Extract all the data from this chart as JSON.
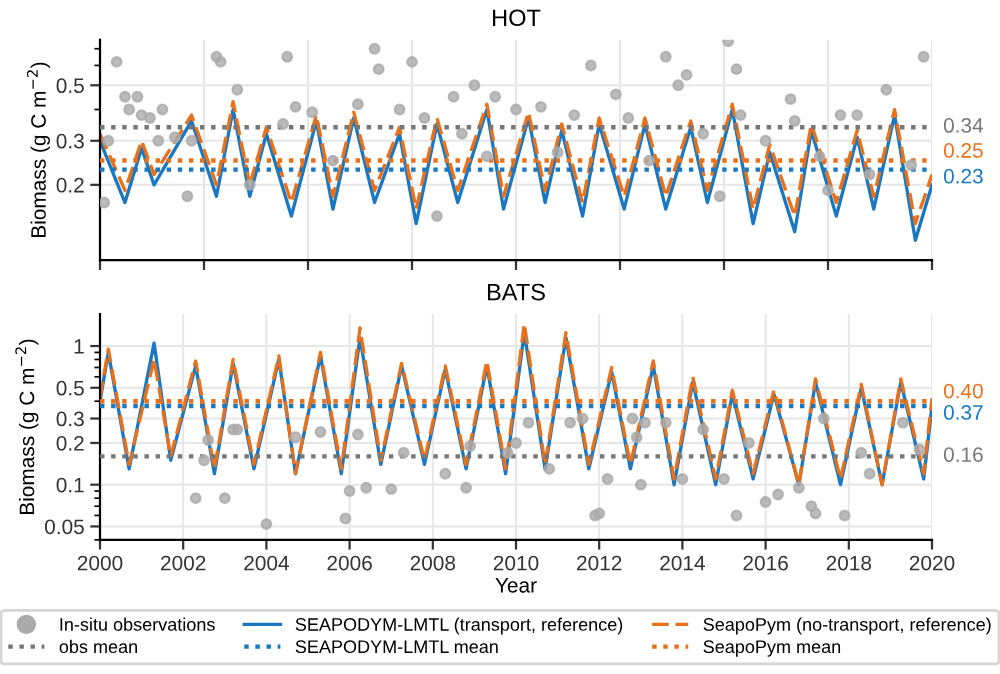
{
  "chart_data": [
    {
      "type": "line",
      "title": "HOT",
      "ylabel": "Biomass (g C m$^{−2}$)",
      "log": "y",
      "xlim": [
        2000,
        2020
      ],
      "ylim": [
        0.1,
        0.76
      ],
      "yticks": [
        0.2,
        0.3,
        0.5
      ],
      "tick_labels": "y",
      "grid": true,
      "series": [
        {
          "type": "scatter",
          "marker": "circle",
          "color": "#aaaaaa",
          "x": [
            2000.1,
            2000.2,
            2000.4,
            2000.6,
            2000.7,
            2000.9,
            2001.0,
            2001.2,
            2001.4,
            2001.5,
            2001.8,
            2002.1,
            2002.2,
            2002.8,
            2002.9,
            2003.3,
            2003.6,
            2004.4,
            2004.5,
            2004.7,
            2005.1,
            2005.6,
            2006.2,
            2006.6,
            2006.7,
            2007.2,
            2007.5,
            2007.8,
            2008.1,
            2008.5,
            2008.7,
            2009.0,
            2009.3,
            2009.5,
            2010.0,
            2010.6,
            2011.0,
            2011.4,
            2011.8,
            2012.4,
            2012.7,
            2013.2,
            2013.6,
            2013.9,
            2014.1,
            2014.5,
            2014.9,
            2015.1,
            2015.3,
            2015.4,
            2016.0,
            2016.6,
            2016.7,
            2017.3,
            2017.5,
            2017.8,
            2018.2,
            2018.5,
            2018.9,
            2019.5,
            2019.8
          ],
          "values": [
            0.17,
            0.3,
            0.62,
            0.45,
            0.4,
            0.45,
            0.38,
            0.37,
            0.3,
            0.4,
            0.31,
            0.18,
            0.3,
            0.65,
            0.62,
            0.48,
            0.2,
            0.35,
            0.65,
            0.41,
            0.39,
            0.25,
            0.42,
            0.7,
            0.58,
            0.4,
            0.62,
            0.37,
            0.15,
            0.45,
            0.32,
            0.5,
            0.26,
            0.45,
            0.4,
            0.41,
            0.27,
            0.38,
            0.6,
            0.46,
            0.37,
            0.25,
            0.65,
            0.5,
            0.55,
            0.32,
            0.18,
            0.75,
            0.58,
            0.38,
            0.3,
            0.44,
            0.36,
            0.26,
            0.19,
            0.38,
            0.38,
            0.22,
            0.48,
            0.24,
            0.65
          ]
        },
        {
          "type": "line",
          "line_style": "dotted",
          "color": "#777777",
          "x": [
            2000,
            2020
          ],
          "values": [
            0.34,
            0.34
          ],
          "value_labels": [
            null,
            "0.34"
          ]
        },
        {
          "type": "line",
          "line_style": "solid",
          "color": "#1a78c2",
          "x": [
            2000.0,
            2000.6,
            2001.0,
            2001.3,
            2002.2,
            2002.8,
            2003.2,
            2003.6,
            2004.0,
            2004.6,
            2005.2,
            2005.6,
            2006.1,
            2006.6,
            2007.2,
            2007.6,
            2008.1,
            2008.6,
            2009.3,
            2009.7,
            2010.3,
            2010.7,
            2011.1,
            2011.6,
            2012.0,
            2012.6,
            2013.1,
            2013.6,
            2014.2,
            2014.6,
            2015.2,
            2015.7,
            2016.1,
            2016.7,
            2017.1,
            2017.7,
            2018.2,
            2018.6,
            2019.1,
            2019.6,
            2020.0
          ],
          "values": [
            0.3,
            0.17,
            0.28,
            0.2,
            0.36,
            0.18,
            0.4,
            0.18,
            0.32,
            0.15,
            0.36,
            0.16,
            0.37,
            0.17,
            0.32,
            0.14,
            0.35,
            0.17,
            0.4,
            0.16,
            0.37,
            0.17,
            0.33,
            0.15,
            0.35,
            0.16,
            0.35,
            0.16,
            0.34,
            0.17,
            0.4,
            0.14,
            0.27,
            0.13,
            0.33,
            0.15,
            0.31,
            0.16,
            0.38,
            0.12,
            0.2
          ]
        },
        {
          "type": "line",
          "line_style": "dotted",
          "color": "#1a78c2",
          "x": [
            2000,
            2020
          ],
          "values": [
            0.23,
            0.23
          ],
          "value_labels": [
            null,
            "0.23"
          ]
        },
        {
          "type": "line",
          "line_style": "dashed",
          "color": "#e8711c",
          "x": [
            2000.0,
            2000.6,
            2001.0,
            2001.3,
            2002.2,
            2002.8,
            2003.2,
            2003.6,
            2004.0,
            2004.6,
            2005.2,
            2005.6,
            2006.1,
            2006.6,
            2007.2,
            2007.6,
            2008.1,
            2008.6,
            2009.3,
            2009.7,
            2010.3,
            2010.7,
            2011.1,
            2011.6,
            2012.0,
            2012.6,
            2013.1,
            2013.6,
            2014.2,
            2014.6,
            2015.2,
            2015.7,
            2016.1,
            2016.7,
            2017.1,
            2017.7,
            2018.2,
            2018.6,
            2019.1,
            2019.6,
            2020.0
          ],
          "values": [
            0.32,
            0.19,
            0.3,
            0.22,
            0.38,
            0.2,
            0.43,
            0.2,
            0.34,
            0.17,
            0.38,
            0.18,
            0.39,
            0.19,
            0.34,
            0.16,
            0.37,
            0.19,
            0.42,
            0.18,
            0.39,
            0.19,
            0.35,
            0.17,
            0.37,
            0.18,
            0.37,
            0.18,
            0.36,
            0.19,
            0.42,
            0.16,
            0.29,
            0.15,
            0.35,
            0.17,
            0.33,
            0.18,
            0.4,
            0.14,
            0.22
          ]
        },
        {
          "type": "line",
          "line_style": "dotted",
          "color": "#e8711c",
          "x": [
            2000,
            2020
          ],
          "values": [
            0.25,
            0.25
          ],
          "value_labels": [
            null,
            "0.25"
          ]
        }
      ]
    },
    {
      "type": "line",
      "title": "BATS",
      "xlabel": "Year",
      "ylabel": "Biomass (g C m$^{−2}$)",
      "log": "y",
      "xlim": [
        2000,
        2020
      ],
      "ylim": [
        0.04,
        1.7
      ],
      "xticks": [
        2000,
        2002,
        2004,
        2006,
        2008,
        2010,
        2012,
        2014,
        2016,
        2018,
        2020
      ],
      "yticks": [
        0.05,
        0.1,
        0.2,
        0.3,
        0.5,
        1
      ],
      "grid": true,
      "legend": "bottom",
      "series": [
        {
          "name": "In-situ observations",
          "type": "scatter",
          "marker": "circle",
          "color": "#aaaaaa",
          "x": [
            2002.3,
            2002.5,
            2002.6,
            2003.0,
            2003.2,
            2003.3,
            2004.0,
            2004.7,
            2005.3,
            2005.9,
            2006.0,
            2006.2,
            2006.4,
            2007.0,
            2007.3,
            2008.3,
            2008.8,
            2008.9,
            2009.8,
            2010.0,
            2010.3,
            2010.8,
            2011.3,
            2011.6,
            2011.9,
            2012.0,
            2012.2,
            2012.8,
            2012.9,
            2013.0,
            2013.1,
            2013.6,
            2014.0,
            2014.5,
            2015.0,
            2015.3,
            2015.6,
            2016.0,
            2016.3,
            2016.8,
            2017.1,
            2017.2,
            2017.4,
            2017.9,
            2018.3,
            2018.5,
            2019.3,
            2019.7
          ],
          "values": [
            0.08,
            0.15,
            0.21,
            0.08,
            0.25,
            0.25,
            0.052,
            0.22,
            0.24,
            0.057,
            0.09,
            0.23,
            0.095,
            0.093,
            0.17,
            0.12,
            0.095,
            0.19,
            0.17,
            0.2,
            0.28,
            0.13,
            0.28,
            0.3,
            0.06,
            0.062,
            0.11,
            0.3,
            0.22,
            0.1,
            0.28,
            0.28,
            0.11,
            0.25,
            0.11,
            0.06,
            0.2,
            0.075,
            0.085,
            0.095,
            0.07,
            0.062,
            0.3,
            0.06,
            0.17,
            0.12,
            0.28,
            0.18
          ]
        },
        {
          "name": "obs mean",
          "type": "line",
          "line_style": "dotted",
          "color": "#777777",
          "x": [
            2000,
            2020
          ],
          "values": [
            0.16,
            0.16
          ],
          "value_labels": [
            null,
            "0.16"
          ]
        },
        {
          "name": "SEAPODYM-LMTL (transport, reference)",
          "type": "line",
          "line_style": "solid",
          "color": "#1a78c2",
          "x": [
            2000.0,
            2000.2,
            2000.7,
            2001.3,
            2001.7,
            2002.3,
            2002.75,
            2003.2,
            2003.7,
            2004.3,
            2004.7,
            2005.3,
            2005.8,
            2006.25,
            2006.75,
            2007.25,
            2007.8,
            2008.3,
            2008.8,
            2009.3,
            2009.75,
            2010.2,
            2010.7,
            2011.2,
            2011.75,
            2012.3,
            2012.75,
            2013.3,
            2013.8,
            2014.25,
            2014.8,
            2015.2,
            2015.7,
            2016.2,
            2016.8,
            2017.2,
            2017.8,
            2018.3,
            2018.8,
            2019.25,
            2019.8,
            2020.0
          ],
          "values": [
            0.4,
            0.9,
            0.13,
            1.05,
            0.15,
            0.72,
            0.12,
            0.75,
            0.13,
            0.8,
            0.12,
            0.85,
            0.12,
            1.15,
            0.14,
            0.72,
            0.14,
            0.68,
            0.13,
            0.72,
            0.12,
            1.25,
            0.13,
            1.15,
            0.13,
            0.65,
            0.13,
            0.72,
            0.1,
            0.55,
            0.1,
            0.45,
            0.11,
            0.45,
            0.1,
            0.55,
            0.1,
            0.5,
            0.1,
            0.55,
            0.11,
            0.37
          ]
        },
        {
          "name": "SEAPODYM-LMTL mean",
          "type": "line",
          "line_style": "dotted",
          "color": "#1a78c2",
          "x": [
            2000,
            2020
          ],
          "values": [
            0.37,
            0.37
          ],
          "value_labels": [
            null,
            "0.37"
          ]
        },
        {
          "name": "SeapoPym (no-transport, reference)",
          "type": "line",
          "line_style": "dashed",
          "color": "#e8711c",
          "x": [
            2000.0,
            2000.2,
            2000.7,
            2001.3,
            2001.7,
            2002.3,
            2002.75,
            2003.2,
            2003.7,
            2004.3,
            2004.7,
            2005.3,
            2005.8,
            2006.25,
            2006.75,
            2007.25,
            2007.8,
            2008.3,
            2008.8,
            2009.3,
            2009.75,
            2010.2,
            2010.7,
            2011.2,
            2011.75,
            2012.3,
            2012.75,
            2013.3,
            2013.8,
            2014.25,
            2014.8,
            2015.2,
            2015.7,
            2016.2,
            2016.8,
            2017.2,
            2017.8,
            2018.3,
            2018.8,
            2019.25,
            2019.8,
            2020.0
          ],
          "values": [
            0.42,
            0.95,
            0.14,
            0.8,
            0.16,
            0.78,
            0.13,
            0.8,
            0.14,
            0.85,
            0.12,
            0.9,
            0.13,
            1.35,
            0.15,
            0.75,
            0.15,
            0.72,
            0.14,
            0.78,
            0.13,
            1.45,
            0.14,
            1.25,
            0.14,
            0.7,
            0.14,
            0.78,
            0.11,
            0.6,
            0.11,
            0.48,
            0.12,
            0.48,
            0.1,
            0.58,
            0.11,
            0.53,
            0.1,
            0.58,
            0.12,
            0.42
          ]
        },
        {
          "name": "SeapoPym mean",
          "type": "line",
          "line_style": "dotted",
          "color": "#e8711c",
          "x": [
            2000,
            2020
          ],
          "values": [
            0.4,
            0.4
          ],
          "value_labels": [
            null,
            "0.40"
          ]
        }
      ]
    }
  ]
}
